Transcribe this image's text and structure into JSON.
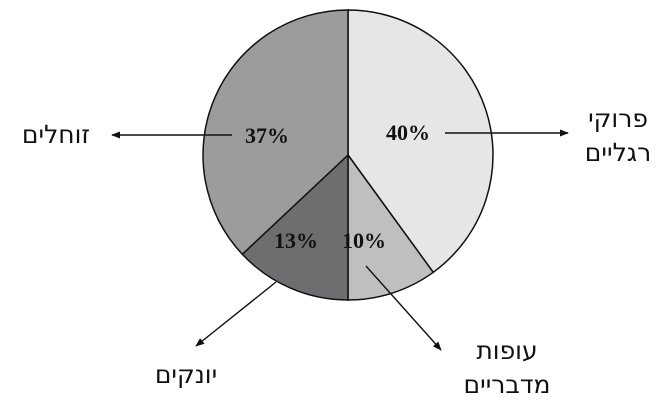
{
  "chart_data": {
    "type": "pie",
    "categories": [
      "פרוקי רגליים",
      "עופות מדבריים",
      "יונקים",
      "זוחלים"
    ],
    "values": [
      40,
      10,
      13,
      37
    ],
    "value_labels": [
      "40%",
      "10%",
      "13%",
      "37%"
    ],
    "colors": [
      "#e6e6e6",
      "#bfbfbf",
      "#6e6e70",
      "#9c9c9c"
    ]
  }
}
